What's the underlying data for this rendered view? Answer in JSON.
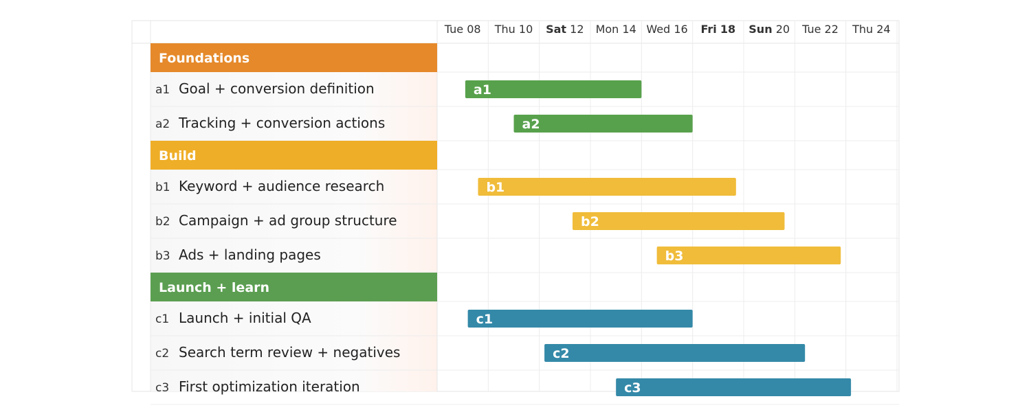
{
  "chart_data": {
    "type": "gantt",
    "title": "",
    "x_axis": {
      "unit": "day",
      "start_day": 7,
      "end_day": 25,
      "ticks": [
        {
          "day": 8,
          "weekday": "Tue",
          "date": "08",
          "bold_part": "none"
        },
        {
          "day": 10,
          "weekday": "Thu",
          "date": "10",
          "bold_part": "none"
        },
        {
          "day": 12,
          "weekday": "Sat",
          "date": "12",
          "bold_part": "weekday"
        },
        {
          "day": 14,
          "weekday": "Mon",
          "date": "14",
          "bold_part": "none"
        },
        {
          "day": 16,
          "weekday": "Wed",
          "date": "16",
          "bold_part": "none"
        },
        {
          "day": 18,
          "weekday": "Fri",
          "date": "18",
          "bold_part": "both"
        },
        {
          "day": 20,
          "weekday": "Sun",
          "date": "20",
          "bold_part": "weekday"
        },
        {
          "day": 22,
          "weekday": "Tue",
          "date": "22",
          "bold_part": "none"
        },
        {
          "day": 24,
          "weekday": "Thu",
          "date": "24",
          "bold_part": "none"
        }
      ]
    },
    "groups": [
      {
        "name": "Foundations",
        "header_color": "#e5892a",
        "bar_color": "#58a14c",
        "tasks": [
          {
            "code": "a1",
            "name": "Goal + conversion definition",
            "start": 8.1,
            "end": 15.0
          },
          {
            "code": "a2",
            "name": "Tracking + conversion actions",
            "start": 10.0,
            "end": 17.0
          }
        ]
      },
      {
        "name": "Build",
        "header_color": "#efae27",
        "bar_color": "#f0bc3a",
        "tasks": [
          {
            "code": "b1",
            "name": "Keyword + audience research",
            "start": 8.6,
            "end": 18.7
          },
          {
            "code": "b2",
            "name": "Campaign + ad group structure",
            "start": 12.3,
            "end": 20.6
          },
          {
            "code": "b3",
            "name": "Ads + landing pages",
            "start": 15.6,
            "end": 22.8
          }
        ]
      },
      {
        "name": "Launch + learn",
        "header_color": "#5b9e51",
        "bar_color": "#3489a8",
        "tasks": [
          {
            "code": "c1",
            "name": "Launch + initial QA",
            "start": 8.2,
            "end": 17.0
          },
          {
            "code": "c2",
            "name": "Search term review + negatives",
            "start": 11.2,
            "end": 21.4
          },
          {
            "code": "c3",
            "name": "First optimization iteration",
            "start": 14.0,
            "end": 23.2
          }
        ]
      }
    ],
    "legend": "none",
    "grid": true
  }
}
